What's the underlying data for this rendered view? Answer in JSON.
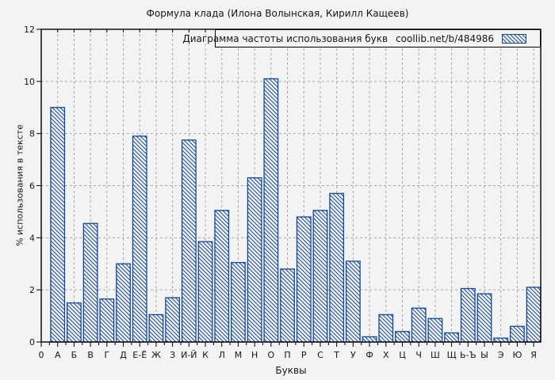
{
  "chart_data": {
    "type": "bar",
    "title": "Формула клада (Илона Волынская, Кирилл Кащеев)",
    "legend": {
      "label": "Диаграмма частоты использования букв",
      "source": "coollib.net/b/484986",
      "position": "top-right",
      "swatch": "blue-diagonal-hatch"
    },
    "xlabel": "Буквы",
    "ylabel": "% использования в тексте",
    "x_origin_label": "0",
    "ylim": [
      0,
      12
    ],
    "yticks": [
      0,
      2,
      4,
      6,
      8,
      10,
      12
    ],
    "grid": true,
    "categories": [
      "А",
      "Б",
      "В",
      "Г",
      "Д",
      "Е-Ё",
      "Ж",
      "З",
      "И-Й",
      "К",
      "Л",
      "М",
      "Н",
      "О",
      "П",
      "Р",
      "С",
      "Т",
      "У",
      "Ф",
      "Х",
      "Ц",
      "Ч",
      "Ш",
      "Щ",
      "Ь-Ъ",
      "Ы",
      "Э",
      "Ю",
      "Я"
    ],
    "values": [
      9.0,
      1.5,
      4.55,
      1.65,
      3.0,
      7.9,
      1.05,
      1.7,
      7.75,
      3.85,
      5.05,
      3.05,
      6.3,
      10.1,
      2.8,
      4.8,
      5.05,
      5.7,
      3.1,
      0.2,
      1.05,
      0.4,
      1.3,
      0.9,
      0.35,
      2.05,
      1.85,
      0.15,
      0.6,
      2.1
    ],
    "colors": {
      "bar": "#12479e",
      "grid": "#a6a6a6",
      "axis": "#000000",
      "text": "#161616",
      "background": "#f3f3f3"
    }
  }
}
